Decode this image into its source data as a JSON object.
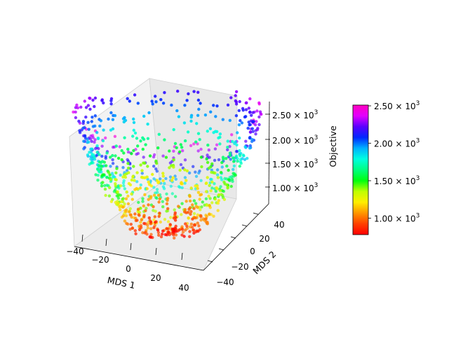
{
  "chart_data": {
    "type": "scatter",
    "projection": "3d",
    "xlabel": "MDS 1",
    "ylabel": "MDS 2",
    "zlabel": "Objective",
    "x_ticks": [
      "−40",
      "−20",
      "0",
      "20",
      "40"
    ],
    "y_ticks": [
      "−40",
      "−20",
      "0",
      "20",
      "40"
    ],
    "z_ticks": [
      {
        "base": "1.00 × 10",
        "exp": "3"
      },
      {
        "base": "1.50 × 10",
        "exp": "3"
      },
      {
        "base": "2.00 × 10",
        "exp": "3"
      },
      {
        "base": "2.50 × 10",
        "exp": "3"
      }
    ],
    "xlim": [
      -45,
      45
    ],
    "ylim": [
      -45,
      45
    ],
    "zlim": [
      780,
      2550
    ],
    "grid": true,
    "colormap": "gist_rainbow",
    "colorbar": {
      "range": [
        780,
        2510
      ],
      "ticks": [
        {
          "value": 1000,
          "base": "1.00 × 10",
          "exp": "3"
        },
        {
          "value": 1500,
          "base": "1.50 × 10",
          "exp": "3"
        },
        {
          "value": 2000,
          "base": "2.00 × 10",
          "exp": "3"
        },
        {
          "value": 2500,
          "base": "2.50 × 10",
          "exp": "3"
        }
      ],
      "colors": [
        "#ff0000",
        "#ff4000",
        "#ff9600",
        "#ffee00",
        "#bfff00",
        "#00ff0f",
        "#00ff7f",
        "#00ffe0",
        "#00b2ff",
        "#0028ff",
        "#5a00ff",
        "#e300ff",
        "#ff00c0"
      ]
    },
    "shape": "paraboloid bowl",
    "n_points": 1000,
    "points_sample": [
      {
        "x": 0,
        "y": 0,
        "z": 800
      },
      {
        "x": 20,
        "y": 0,
        "z": 1100
      },
      {
        "x": -30,
        "y": 10,
        "z": 1600
      },
      {
        "x": 35,
        "y": -20,
        "z": 1900
      },
      {
        "x": -40,
        "y": 30,
        "z": 2300
      }
    ]
  }
}
